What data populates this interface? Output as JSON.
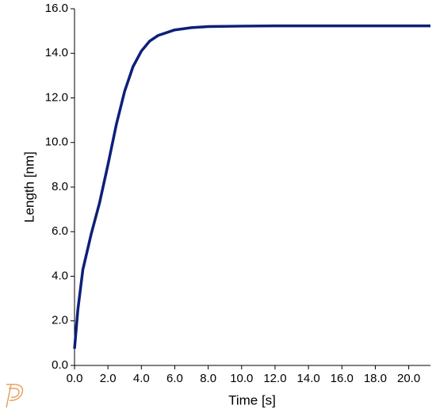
{
  "chart_data": {
    "type": "line",
    "x_label": "Time [s]",
    "y_label": "Length [nm]",
    "series": [
      {
        "name": "Length",
        "color": "#0d1f7a",
        "x": [
          0,
          0.2,
          0.5,
          1.0,
          1.5,
          2.0,
          2.5,
          3.0,
          3.5,
          4.0,
          4.5,
          5.0,
          6.0,
          7.0,
          8.0,
          10.0,
          12.0,
          21.3
        ],
        "values": [
          0.75,
          2.5,
          4.3,
          5.9,
          7.3,
          9.0,
          10.8,
          12.3,
          13.4,
          14.1,
          14.55,
          14.8,
          15.05,
          15.15,
          15.2,
          15.22,
          15.23,
          15.23
        ]
      }
    ],
    "xlim": [
      0,
      21.3
    ],
    "xticks": [
      {
        "value": 0,
        "label": "0.0"
      },
      {
        "value": 2,
        "label": "2.0"
      },
      {
        "value": 4,
        "label": "4.0"
      },
      {
        "value": 6,
        "label": "6.0"
      },
      {
        "value": 8,
        "label": "8.0"
      },
      {
        "value": 10,
        "label": "10.0"
      },
      {
        "value": 12,
        "label": "12.0"
      },
      {
        "value": 14,
        "label": "14.0"
      },
      {
        "value": 16,
        "label": "16.0"
      },
      {
        "value": 18,
        "label": "18.0"
      },
      {
        "value": 20,
        "label": "20.0"
      }
    ],
    "ylim": [
      0,
      16
    ],
    "yticks": [
      {
        "value": 0,
        "label": "0.0"
      },
      {
        "value": 2,
        "label": "2.0"
      },
      {
        "value": 4,
        "label": "4.0"
      },
      {
        "value": 6,
        "label": "6.0"
      },
      {
        "value": 8,
        "label": "8.0"
      },
      {
        "value": 10,
        "label": "10.0"
      },
      {
        "value": 12,
        "label": "12.0"
      },
      {
        "value": 14,
        "label": "14.0"
      },
      {
        "value": 16,
        "label": "16.0"
      }
    ],
    "grid": false
  }
}
